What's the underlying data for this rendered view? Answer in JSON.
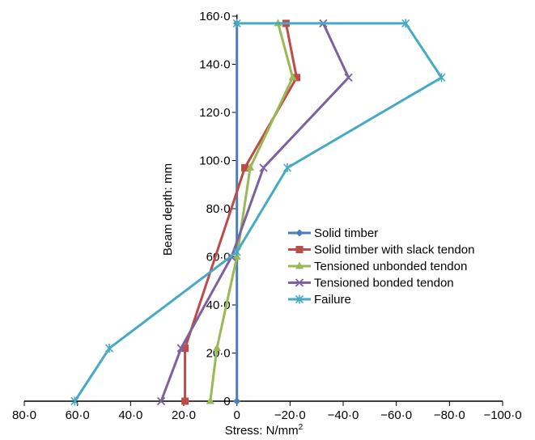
{
  "chart_data": {
    "type": "line",
    "xlabel": "Stress: N/mm",
    "xlabel_sup": "2",
    "ylabel": "Beam depth: mm",
    "x_ticks": [
      80,
      60,
      40,
      20,
      0,
      -20,
      -40,
      -60,
      -80,
      -100
    ],
    "x_tick_labels": [
      "80·0",
      "60·0",
      "40·0",
      "20·0",
      "0",
      "−20·0",
      "−40·0",
      "−60·0",
      "−80·0",
      "−100·0"
    ],
    "y_ticks": [
      0,
      20,
      40,
      60,
      80,
      100,
      120,
      140,
      160
    ],
    "y_tick_labels": [
      "0",
      "20·0",
      "40·0",
      "60·0",
      "80·0",
      "100·0",
      "120·0",
      "140·0",
      "160·0"
    ],
    "xlim": [
      80,
      -100
    ],
    "ylim": [
      0,
      160
    ],
    "legend_position": "center-right",
    "series": [
      {
        "name": "Solid timber",
        "color": "#4a7ebb",
        "marker": "diamond",
        "points": [
          [
            0,
            0
          ],
          [
            0,
            157
          ]
        ]
      },
      {
        "name": "Solid timber with slack tendon",
        "color": "#be4b48",
        "marker": "square",
        "points": [
          [
            19.5,
            0
          ],
          [
            19.5,
            22
          ],
          [
            -3,
            97
          ],
          [
            -22.5,
            134.5
          ],
          [
            -18.5,
            157
          ]
        ]
      },
      {
        "name": "Tensioned unbonded tendon",
        "color": "#98b954",
        "marker": "triangle",
        "points": [
          [
            10,
            0
          ],
          [
            7.5,
            22
          ],
          [
            0,
            60
          ],
          [
            -5,
            97
          ],
          [
            -21,
            134.5
          ],
          [
            -15.5,
            157
          ]
        ]
      },
      {
        "name": "Tensioned bonded tendon",
        "color": "#7d60a0",
        "marker": "x",
        "points": [
          [
            28.5,
            0
          ],
          [
            21,
            22
          ],
          [
            2,
            60
          ],
          [
            -10,
            97
          ],
          [
            -42,
            134.5
          ],
          [
            -32.5,
            157
          ]
        ]
      },
      {
        "name": "Failure",
        "color": "#46aac5",
        "marker": "star",
        "points": [
          [
            61,
            0
          ],
          [
            48,
            22
          ],
          [
            0,
            62
          ],
          [
            -19,
            97
          ],
          [
            -77,
            134.5
          ],
          [
            -63.5,
            157
          ],
          [
            0,
            157
          ]
        ]
      }
    ]
  }
}
